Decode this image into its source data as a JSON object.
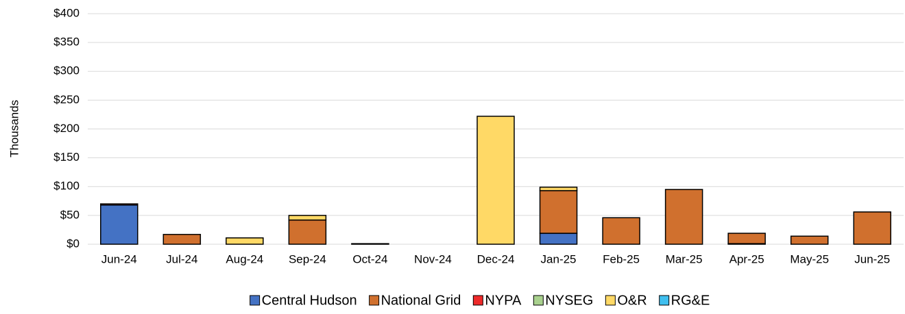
{
  "chart_data": {
    "type": "stacked_bar",
    "y_label": "Thousands",
    "categories": [
      "Jun-24",
      "Jul-24",
      "Aug-24",
      "Sep-24",
      "Oct-24",
      "Nov-24",
      "Dec-24",
      "Jan-25",
      "Feb-25",
      "Mar-25",
      "Apr-25",
      "May-25",
      "Jun-25"
    ],
    "series": [
      {
        "name": "Central Hudson",
        "color": "#4472c4",
        "values": [
          68,
          0,
          0,
          0,
          0,
          0,
          0,
          19,
          0,
          0,
          1,
          0,
          0
        ]
      },
      {
        "name": "National Grid",
        "color": "#d0702e",
        "values": [
          2,
          17,
          0,
          42,
          1,
          0,
          0,
          74,
          46,
          95,
          18,
          14,
          56
        ]
      },
      {
        "name": "NYPA",
        "color": "#ee2a2a",
        "values": [
          0,
          0,
          0,
          0,
          0,
          0,
          0,
          0,
          0,
          0,
          0,
          0,
          0
        ]
      },
      {
        "name": "NYSEG",
        "color": "#a9d18e",
        "values": [
          0,
          0,
          0,
          0,
          0,
          0,
          0,
          0,
          0,
          0,
          0,
          0,
          0
        ]
      },
      {
        "name": "O&R",
        "color": "#ffd966",
        "values": [
          0,
          0,
          11,
          8,
          0,
          0,
          222,
          6,
          0,
          0,
          0,
          0,
          0
        ]
      },
      {
        "name": "RG&E",
        "color": "#3fbfef",
        "values": [
          0,
          0,
          0,
          0,
          0,
          0,
          0,
          0,
          0,
          0,
          0,
          0,
          0
        ]
      }
    ],
    "ylim": [
      0,
      400
    ],
    "yticks": [
      {
        "value": 0,
        "label": "$0"
      },
      {
        "value": 50,
        "label": "$50"
      },
      {
        "value": 100,
        "label": "$100"
      },
      {
        "value": 150,
        "label": "$150"
      },
      {
        "value": 200,
        "label": "$200"
      },
      {
        "value": 250,
        "label": "$250"
      },
      {
        "value": 300,
        "label": "$300"
      },
      {
        "value": 350,
        "label": "$350"
      },
      {
        "value": 400,
        "label": "$400"
      }
    ],
    "grid": true,
    "legend": "bottom"
  }
}
